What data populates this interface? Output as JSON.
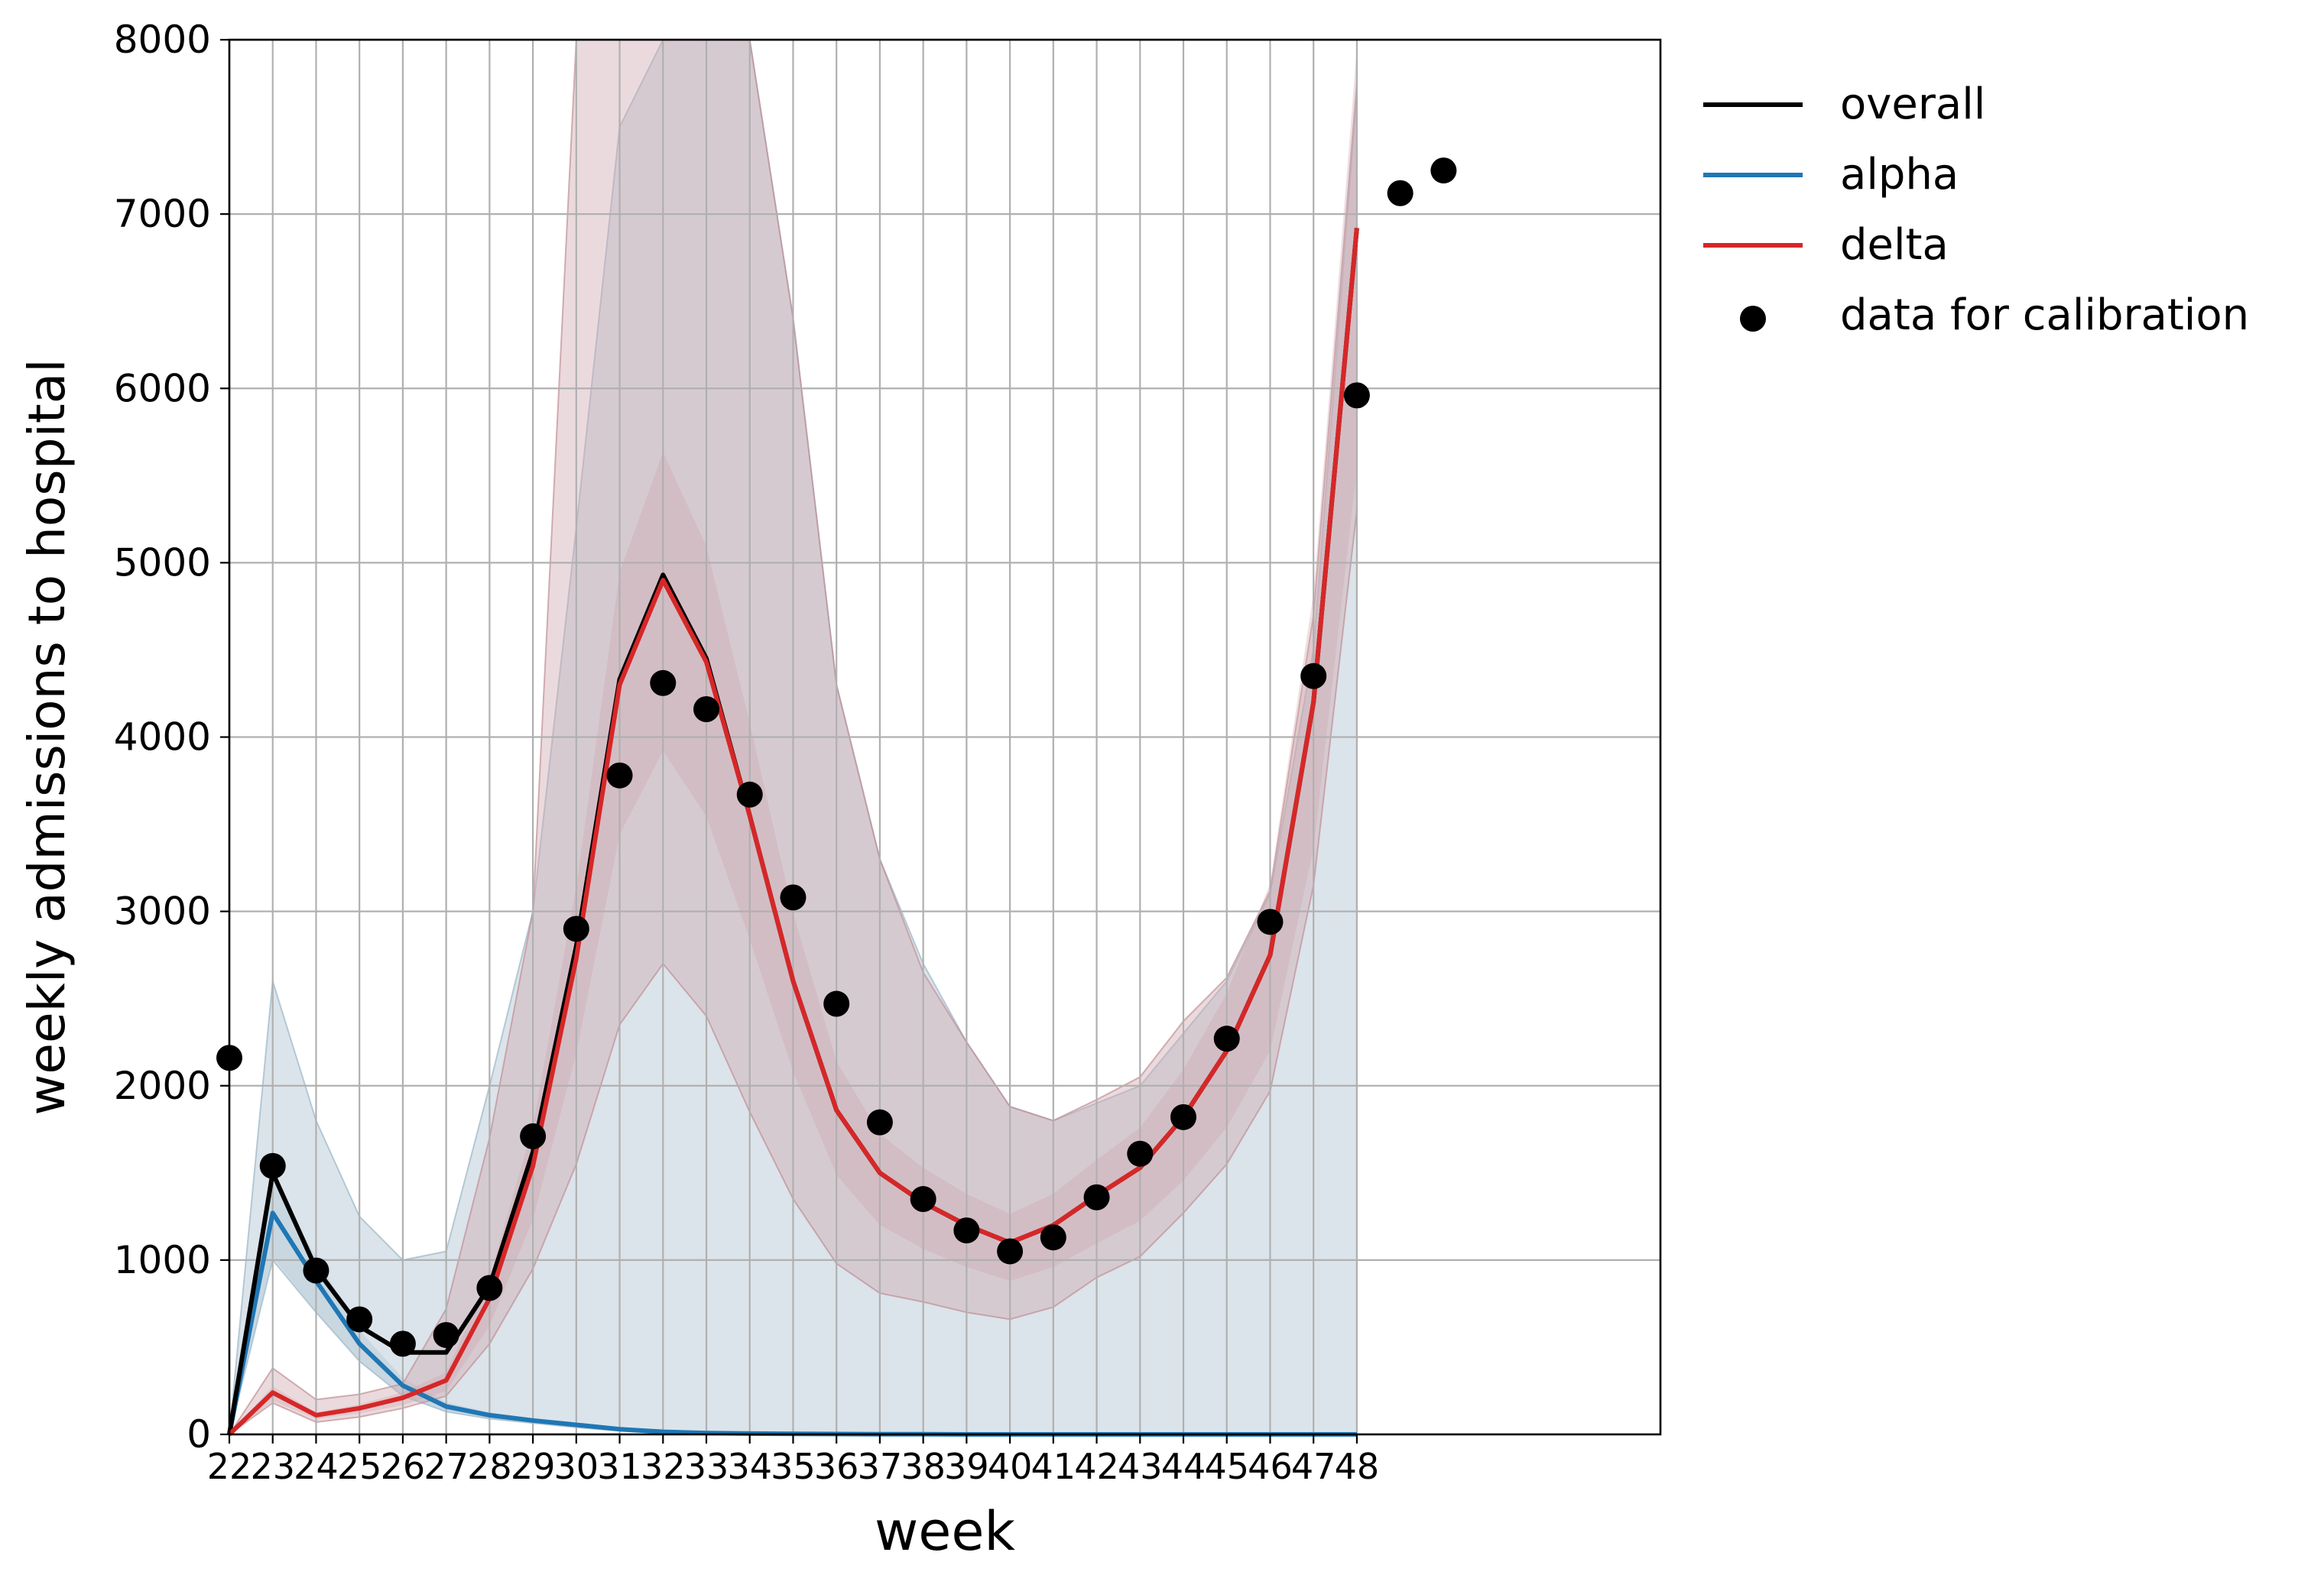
{
  "chart_data": {
    "type": "line",
    "xlabel": "week",
    "ylabel": "weekly admissions to hospital",
    "xlim": [
      22,
      55
    ],
    "ylim": [
      0,
      8000
    ],
    "grid": true,
    "legend_position": "outside-top-right",
    "x_ticks": [
      22,
      23,
      24,
      25,
      26,
      27,
      28,
      29,
      30,
      31,
      32,
      33,
      34,
      35,
      36,
      37,
      38,
      39,
      40,
      41,
      42,
      43,
      44,
      45,
      46,
      47,
      48
    ],
    "y_ticks": [
      0,
      1000,
      2000,
      3000,
      4000,
      5000,
      6000,
      7000,
      8000
    ],
    "series": [
      {
        "name": "overall",
        "color": "#000000",
        "x": [
          22,
          23,
          24,
          25,
          26,
          27,
          28,
          29,
          30,
          31,
          32,
          33,
          34,
          35,
          36,
          37,
          38,
          39,
          40,
          41,
          42,
          43,
          44,
          45,
          46,
          47,
          48
        ],
        "values": [
          0,
          1500,
          950,
          620,
          470,
          470,
          850,
          1620,
          2800,
          4330,
          4930,
          4450,
          3550,
          2600,
          1860,
          1500,
          1330,
          1200,
          1100,
          1200,
          1370,
          1530,
          1820,
          2200,
          2750,
          4200,
          6920
        ]
      },
      {
        "name": "alpha",
        "color": "#1f77b4",
        "x": [
          22,
          23,
          24,
          25,
          26,
          27,
          28,
          29,
          30,
          31,
          32,
          33,
          34,
          35,
          36,
          37,
          38,
          39,
          40,
          41,
          42,
          43,
          44,
          45,
          46,
          47,
          48
        ],
        "values": [
          0,
          1270,
          880,
          520,
          280,
          160,
          110,
          80,
          55,
          30,
          15,
          8,
          5,
          3,
          2,
          1,
          1,
          0,
          0,
          0,
          0,
          0,
          0,
          0,
          0,
          0,
          0
        ],
        "band_lower": [
          0,
          1000,
          700,
          420,
          220,
          130,
          90,
          65,
          40,
          20,
          10,
          5,
          3,
          2,
          1,
          0,
          0,
          0,
          0,
          0,
          0,
          0,
          0,
          0,
          0,
          0,
          0
        ],
        "band_upper": [
          0,
          2600,
          1800,
          1250,
          1000,
          1050,
          2000,
          3000,
          5200,
          7500,
          8000,
          8000,
          8000,
          6400,
          4300,
          3300,
          2700,
          2250,
          1880,
          1800,
          1900,
          2000,
          2300,
          2600,
          3100,
          4500,
          7700
        ]
      },
      {
        "name": "delta",
        "color": "#d62728",
        "x": [
          22,
          23,
          24,
          25,
          26,
          27,
          28,
          29,
          30,
          31,
          32,
          33,
          34,
          35,
          36,
          37,
          38,
          39,
          40,
          41,
          42,
          43,
          44,
          45,
          46,
          47,
          48
        ],
        "values": [
          0,
          240,
          110,
          150,
          210,
          310,
          780,
          1540,
          2730,
          4300,
          4900,
          4430,
          3550,
          2600,
          1860,
          1500,
          1330,
          1200,
          1100,
          1200,
          1370,
          1530,
          1820,
          2200,
          2750,
          4200,
          6920
        ],
        "band_lower": [
          0,
          180,
          70,
          100,
          150,
          220,
          520,
          950,
          1550,
          2350,
          2700,
          2400,
          1850,
          1350,
          980,
          810,
          760,
          700,
          660,
          730,
          900,
          1020,
          1270,
          1550,
          1970,
          3150,
          5300
        ],
        "band_upper": [
          0,
          380,
          200,
          230,
          290,
          720,
          1700,
          3000,
          8000,
          8000,
          8000,
          8000,
          8000,
          6400,
          4300,
          3300,
          2650,
          2250,
          1880,
          1800,
          1920,
          2050,
          2370,
          2620,
          3120,
          4700,
          7750
        ]
      }
    ],
    "scatter": {
      "name": "data for calibration",
      "color": "#000000",
      "x": [
        22,
        23,
        24,
        25,
        26,
        27,
        28,
        29,
        30,
        31,
        32,
        33,
        34,
        35,
        36,
        37,
        38,
        39,
        40,
        41,
        42,
        43,
        44,
        45,
        46,
        47,
        48,
        49,
        50
      ],
      "values": [
        2160,
        1540,
        940,
        660,
        520,
        570,
        840,
        1710,
        2900,
        3780,
        4310,
        4160,
        3670,
        3080,
        2470,
        1790,
        1350,
        1170,
        1050,
        1130,
        1360,
        1610,
        1820,
        2270,
        2940,
        4350,
        5960,
        7120,
        7250
      ]
    }
  }
}
